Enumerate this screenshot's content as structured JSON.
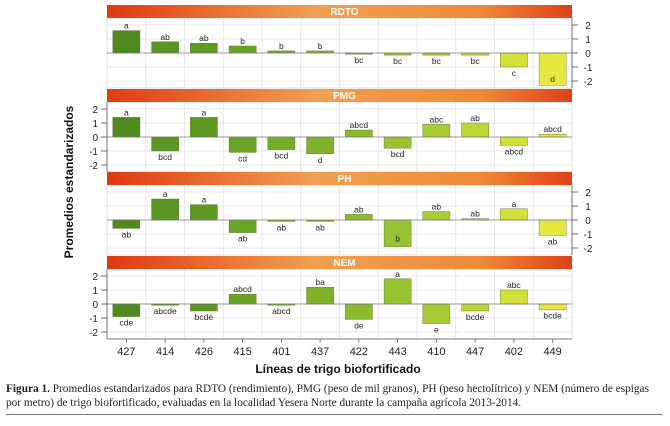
{
  "chart_data": {
    "type": "bar",
    "categories": [
      "427",
      "414",
      "426",
      "415",
      "401",
      "437",
      "422",
      "443",
      "410",
      "447",
      "402",
      "449"
    ],
    "xlabel": "Líneas de trigo biofortificado",
    "ylabel": "Promedios estandarizados",
    "ylim": [
      -2.5,
      2.5
    ],
    "yticks": [
      "2",
      "1",
      "0",
      "-1",
      "-2"
    ],
    "ytick_values": [
      2,
      1,
      0,
      -1,
      -2
    ],
    "grid": true,
    "series": [
      {
        "name": "RDTO",
        "yaxis_side": "right",
        "values": [
          1.6,
          0.8,
          0.7,
          0.5,
          0.15,
          0.15,
          -0.05,
          -0.15,
          -0.15,
          -0.15,
          -1.0,
          -2.3
        ],
        "letters": [
          "a",
          "ab",
          "ab",
          "b",
          "b",
          "b",
          "bc",
          "bc",
          "bc",
          "bc",
          "c",
          "d"
        ]
      },
      {
        "name": "PMG",
        "yaxis_side": "left",
        "values": [
          1.4,
          -1.0,
          1.4,
          -1.1,
          -0.9,
          -1.2,
          0.5,
          -0.8,
          0.9,
          1.0,
          -0.6,
          0.2
        ],
        "letters": [
          "a",
          "bcd",
          "a",
          "cd",
          "bcd",
          "d",
          "abcd",
          "bcd",
          "abc",
          "ab",
          "abcd",
          "abcd"
        ]
      },
      {
        "name": "PH",
        "yaxis_side": "right",
        "values": [
          -0.6,
          1.5,
          1.1,
          -0.9,
          -0.1,
          -0.1,
          0.4,
          -1.9,
          0.6,
          0.1,
          0.8,
          -1.1
        ],
        "letters": [
          "ab",
          "a",
          "a",
          "ab",
          "ab",
          "ab",
          "ab",
          "b",
          "ab",
          "ab",
          "a",
          "ab"
        ]
      },
      {
        "name": "NEM",
        "yaxis_side": "left",
        "values": [
          -0.9,
          -0.05,
          -0.5,
          0.7,
          -0.05,
          1.2,
          -1.1,
          1.8,
          -1.4,
          -0.5,
          1.0,
          -0.4
        ],
        "letters": [
          "cde",
          "abcde",
          "bcde",
          "abcd",
          "abcd",
          "ba",
          "de",
          "a",
          "e",
          "bcde",
          "abc",
          "bcde"
        ]
      }
    ],
    "bar_colors": [
      "#4e8a1e",
      "#5a9422",
      "#5e9a22",
      "#6aa426",
      "#76ac2a",
      "#80b22c",
      "#8cba2e",
      "#98c232",
      "#a8cc34",
      "#bcd636",
      "#d2e03a",
      "#e6e83e"
    ],
    "header_colors": [
      "#e03a12",
      "#f0a050",
      "#e84818"
    ]
  },
  "caption": {
    "label": "Figura 1.",
    "text": " Promedios estandarizados para RDTO (rendimiento), PMG (peso de mil granos), PH (peso hectolítrico) y NEM (número de espigas por metro) de trigo biofortificado, evaluadas en la localidad Yesera Norte durante la campaña agrícola 2013-2014."
  }
}
